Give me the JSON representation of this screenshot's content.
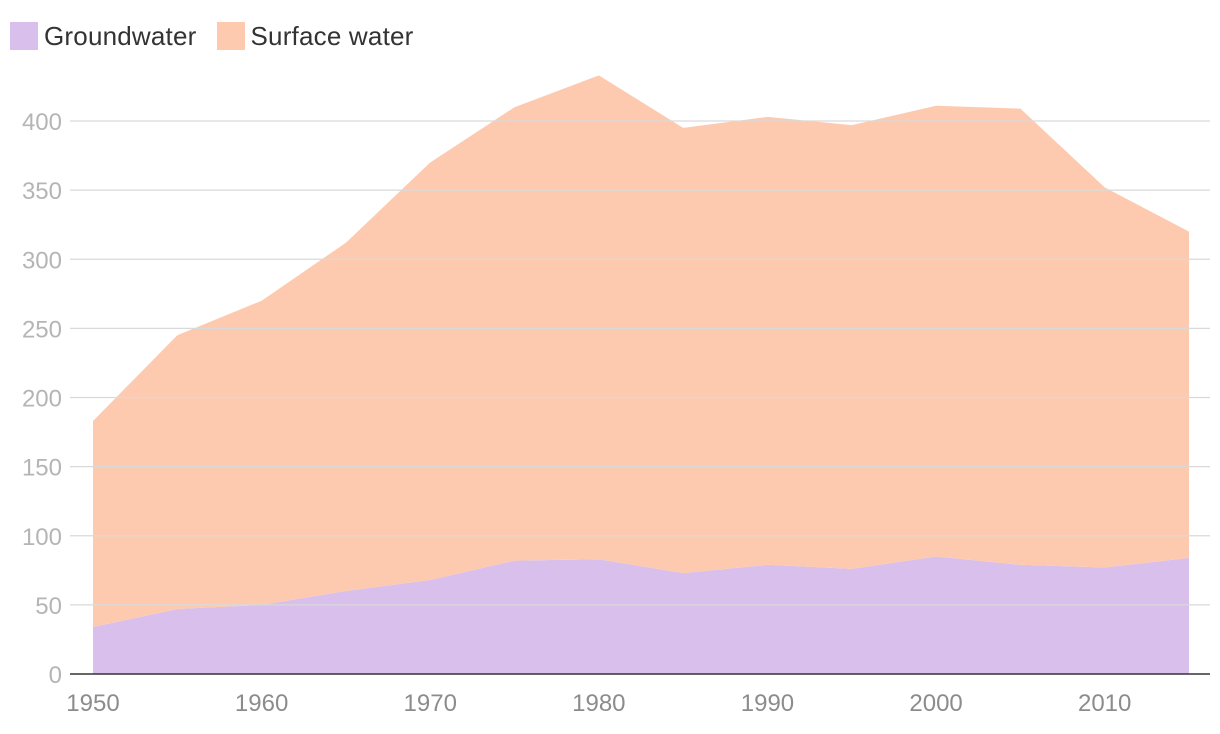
{
  "legend": [
    {
      "label": "Groundwater",
      "color": "#d8bfec"
    },
    {
      "label": "Surface water",
      "color": "#fdcab0"
    }
  ],
  "chart_data": {
    "type": "area",
    "stacked": true,
    "x": [
      1950,
      1955,
      1960,
      1965,
      1970,
      1975,
      1980,
      1985,
      1990,
      1995,
      2000,
      2005,
      2010,
      2015
    ],
    "series": [
      {
        "name": "Groundwater",
        "color": "#d8bfec",
        "values": [
          34,
          47,
          50,
          60,
          68,
          82,
          83,
          73,
          79,
          76,
          85,
          79,
          77,
          84
        ]
      },
      {
        "name": "Surface water",
        "color": "#fdcab0",
        "values": [
          149,
          198,
          220,
          252,
          302,
          328,
          350,
          322,
          324,
          321,
          326,
          330,
          275,
          236
        ]
      }
    ],
    "stacked_totals": [
      183,
      245,
      270,
      312,
      370,
      410,
      433,
      395,
      403,
      397,
      411,
      409,
      352,
      320
    ],
    "yticks": [
      0,
      50,
      100,
      150,
      200,
      250,
      300,
      350,
      400
    ],
    "xticks": [
      1950,
      1960,
      1970,
      1980,
      1990,
      2000,
      2010
    ],
    "ylim": [
      0,
      440
    ],
    "xlim": [
      1950,
      2015
    ],
    "grid": true,
    "legend_position": "top-left"
  }
}
